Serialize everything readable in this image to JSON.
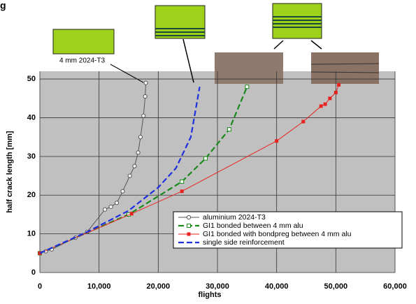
{
  "corner_label": "g",
  "chart_data": {
    "type": "line",
    "ylabel": "half crack length [mm]",
    "xlabel": "flights",
    "annotation": "4 mm 2024-T3",
    "xlim": [
      0,
      60000
    ],
    "ylim": [
      0,
      52
    ],
    "xticks": [
      0,
      {
        "value": 10000,
        "label": "10,000"
      },
      {
        "value": 20000,
        "label": "20,000"
      },
      {
        "value": 30000,
        "label": "30,000"
      },
      {
        "value": 40000,
        "label": "40,000"
      },
      {
        "value": 50000,
        "label": "50,000"
      },
      {
        "value": 60000,
        "label": "60,000"
      }
    ],
    "yticks": [
      0,
      10,
      20,
      30,
      40,
      50
    ],
    "grid": true,
    "series": [
      {
        "name": "aluminium 2024-T3",
        "color": "#555555",
        "line_style": "solid",
        "marker": "circle-open",
        "x": [
          0,
          1000,
          2000,
          6000,
          8000,
          11000,
          12000,
          13000,
          14000,
          15200,
          16000,
          16600,
          17000,
          17500,
          17800,
          17900
        ],
        "values": [
          5,
          5.5,
          6,
          9,
          10.5,
          16.3,
          17,
          18,
          21,
          25,
          27.5,
          31,
          35,
          40.5,
          45.5,
          49
        ]
      },
      {
        "name": "GI1 bonded between 4 mm alu",
        "color": "#1a8a1a",
        "line_style": "dashed",
        "marker": "square-open",
        "x": [
          0,
          15000,
          24000,
          28000,
          32000,
          35000
        ],
        "values": [
          5,
          15,
          23.5,
          29.5,
          37,
          48
        ]
      },
      {
        "name": "GI1 bonded with bondpreg between 4 mm alu",
        "color": "#e8231f",
        "line_style": "solid",
        "marker": "square",
        "x": [
          0,
          15500,
          24000,
          40000,
          44500,
          47500,
          48200,
          49000,
          50000,
          50500
        ],
        "values": [
          5,
          15.2,
          21,
          34,
          39,
          43,
          43.5,
          45,
          46.5,
          48.5
        ]
      },
      {
        "name": "single side reinforcement",
        "color": "#1f2fe0",
        "line_style": "dashed",
        "marker": "none",
        "x": [
          0,
          8000,
          15000,
          20000,
          23000,
          25500,
          27000
        ],
        "values": [
          5,
          10.5,
          16,
          22,
          27,
          35,
          48
        ]
      }
    ]
  }
}
